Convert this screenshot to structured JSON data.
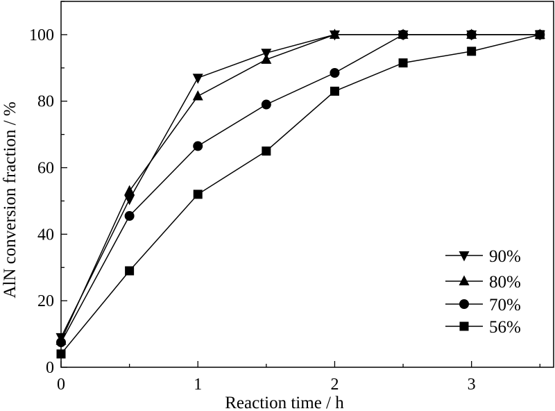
{
  "chart_data": {
    "type": "line",
    "title": "",
    "xlabel": "Reaction time / h",
    "ylabel": "AlN conversion fraction / %",
    "xlim": [
      0,
      3.6
    ],
    "ylim": [
      0,
      110
    ],
    "xticks": [
      0,
      1,
      2,
      3
    ],
    "yticks": [
      0,
      20,
      40,
      60,
      80,
      100
    ],
    "x_minor_step": 0.5,
    "y_minor_step": 10,
    "grid": false,
    "legend_position": "bottom-right",
    "series": [
      {
        "name": "90%",
        "marker": "triangle-down",
        "x": [
          0,
          0.5,
          1,
          1.5,
          2,
          2.5,
          3,
          3.5
        ],
        "y": [
          9,
          50.5,
          87,
          94.5,
          100,
          100,
          100,
          100
        ]
      },
      {
        "name": "80%",
        "marker": "triangle-up",
        "x": [
          0,
          0.5,
          1,
          1.5,
          2,
          2.5,
          3,
          3.5
        ],
        "y": [
          8,
          53,
          81.5,
          92.5,
          100,
          100,
          100,
          100
        ]
      },
      {
        "name": "70%",
        "marker": "circle",
        "x": [
          0,
          0.5,
          1,
          1.5,
          2,
          2.5,
          3,
          3.5
        ],
        "y": [
          7.5,
          45.5,
          66.5,
          79,
          88.5,
          100,
          100,
          100
        ]
      },
      {
        "name": "56%",
        "marker": "square",
        "x": [
          0,
          0.5,
          1,
          1.5,
          2,
          2.5,
          3,
          3.5
        ],
        "y": [
          4,
          29,
          52,
          65,
          83,
          91.5,
          95,
          100
        ]
      }
    ]
  }
}
